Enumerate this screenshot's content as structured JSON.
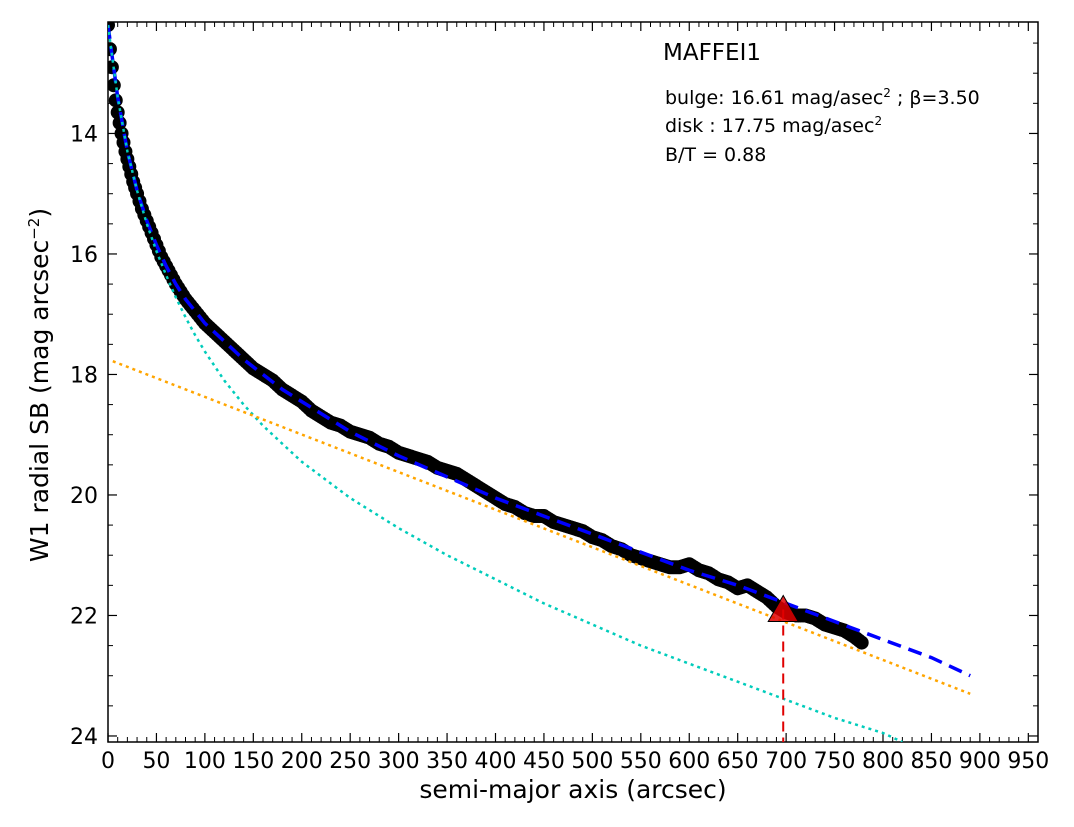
{
  "chart_data": {
    "type": "line",
    "title": "MAFFEI1",
    "xlabel": "semi-major axis (arcsec)",
    "ylabel": "W1 radial SB (mag arcsec",
    "ylabel_sup": "−2",
    "ylabel_close": ")",
    "xlim": [
      0,
      960
    ],
    "ylim": [
      24.1,
      12.15
    ],
    "y_inverted": true,
    "grid": false,
    "xticks": [
      0,
      50,
      100,
      150,
      200,
      250,
      300,
      350,
      400,
      450,
      500,
      550,
      600,
      650,
      700,
      750,
      800,
      850,
      900,
      950
    ],
    "yticks": [
      14,
      16,
      18,
      20,
      22,
      24
    ],
    "annotations": {
      "bulge_text": "bulge: 16.61 mag/asec",
      "bulge_sup": "2",
      "bulge_beta": " ; β=3.50",
      "disk_text": "disk  : 17.75 mag/asec",
      "disk_sup": "2",
      "bt_text": "B/T = 0.88"
    },
    "series": [
      {
        "style": "data points",
        "color": "#000000",
        "x": [
          0,
          2,
          4,
          6,
          8,
          10,
          14,
          18,
          22,
          26,
          30,
          35,
          40,
          45,
          50,
          55,
          60,
          70,
          80,
          90,
          100,
          110,
          120,
          130,
          140,
          150,
          160,
          170,
          180,
          190,
          200,
          210,
          220,
          230,
          240,
          250,
          260,
          270,
          280,
          290,
          300,
          310,
          320,
          330,
          340,
          350,
          360,
          370,
          380,
          390,
          400,
          410,
          420,
          430,
          440,
          450,
          460,
          470,
          480,
          490,
          500,
          510,
          520,
          530,
          540,
          550,
          560,
          570,
          580,
          590,
          600,
          610,
          620,
          630,
          640,
          650,
          660,
          670,
          680,
          690,
          700,
          710,
          720,
          730,
          740,
          750,
          760,
          770,
          778
        ],
        "y": [
          12.2,
          12.6,
          12.9,
          13.2,
          13.45,
          13.65,
          14.0,
          14.3,
          14.55,
          14.8,
          15.0,
          15.25,
          15.45,
          15.65,
          15.85,
          16.05,
          16.2,
          16.5,
          16.75,
          16.95,
          17.15,
          17.3,
          17.45,
          17.6,
          17.75,
          17.9,
          18.0,
          18.1,
          18.25,
          18.35,
          18.45,
          18.6,
          18.7,
          18.8,
          18.85,
          18.95,
          19.0,
          19.05,
          19.15,
          19.2,
          19.3,
          19.35,
          19.4,
          19.45,
          19.55,
          19.6,
          19.65,
          19.75,
          19.85,
          19.95,
          20.05,
          20.15,
          20.2,
          20.3,
          20.35,
          20.35,
          20.45,
          20.5,
          20.55,
          20.6,
          20.7,
          20.75,
          20.85,
          20.9,
          21.0,
          21.05,
          21.1,
          21.15,
          21.2,
          21.2,
          21.15,
          21.25,
          21.3,
          21.4,
          21.45,
          21.55,
          21.5,
          21.6,
          21.7,
          21.85,
          21.95,
          22.0,
          22.0,
          22.05,
          22.15,
          22.2,
          22.25,
          22.35,
          22.45
        ]
      },
      {
        "style": "dashed",
        "color": "#0000ff",
        "x": [
          0,
          5,
          10,
          20,
          30,
          40,
          50,
          60,
          70,
          80,
          90,
          100,
          120,
          140,
          160,
          180,
          200,
          250,
          300,
          350,
          400,
          450,
          500,
          550,
          600,
          650,
          700,
          750,
          800,
          850,
          890
        ],
        "y": [
          12.2,
          12.8,
          13.4,
          14.3,
          14.95,
          15.45,
          15.85,
          16.2,
          16.5,
          16.75,
          16.95,
          17.15,
          17.45,
          17.75,
          18.0,
          18.25,
          18.45,
          18.95,
          19.35,
          19.7,
          20.05,
          20.35,
          20.65,
          20.95,
          21.25,
          21.5,
          21.8,
          22.1,
          22.4,
          22.7,
          23.0
        ]
      },
      {
        "style": "dotted",
        "color": "#00ccbb",
        "x": [
          0,
          5,
          10,
          20,
          30,
          40,
          50,
          60,
          70,
          80,
          90,
          100,
          120,
          140,
          160,
          180,
          200,
          250,
          300,
          350,
          400,
          450,
          500,
          550,
          600,
          650,
          700,
          750,
          800,
          820
        ],
        "y": [
          12.2,
          12.8,
          13.4,
          14.3,
          14.95,
          15.5,
          15.95,
          16.35,
          16.72,
          17.05,
          17.35,
          17.62,
          18.1,
          18.5,
          18.85,
          19.15,
          19.45,
          20.05,
          20.55,
          21.0,
          21.4,
          21.8,
          22.15,
          22.5,
          22.8,
          23.1,
          23.4,
          23.7,
          23.95,
          24.1
        ]
      },
      {
        "style": "dotted",
        "color": "#ffa500",
        "x": [
          5,
          890
        ],
        "y": [
          17.78,
          23.3
        ]
      }
    ],
    "marker": {
      "shape": "triangle",
      "color": "#e00000",
      "x": 697,
      "y": 21.9,
      "vline_style": "dashed"
    }
  }
}
